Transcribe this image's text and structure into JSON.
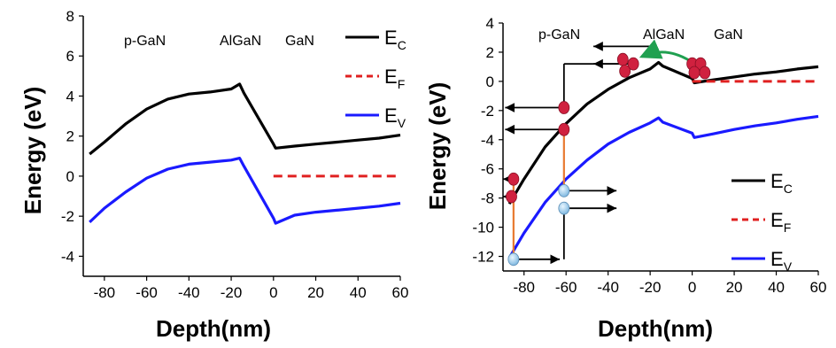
{
  "chart_data": [
    {
      "type": "line",
      "xlabel": "Depth(nm)",
      "ylabel": "Energy (eV)",
      "xlim": [
        -90,
        60
      ],
      "ylim": [
        -5,
        8
      ],
      "xticks": [
        -80,
        -60,
        -40,
        -20,
        0,
        20,
        40,
        60
      ],
      "yticks": [
        8,
        6,
        4,
        2,
        0,
        -2,
        -4
      ],
      "region_labels": [
        "p-GaN",
        "AlGaN",
        "GaN"
      ],
      "legend": {
        "position": "top-right",
        "entries": [
          {
            "main": "E",
            "sub": "C",
            "color": "#000000",
            "style": "solid"
          },
          {
            "main": "E",
            "sub": "F",
            "color": "#e02020",
            "style": "dashed"
          },
          {
            "main": "E",
            "sub": "V",
            "color": "#1a1aff",
            "style": "solid"
          }
        ]
      },
      "series": [
        {
          "name": "EC",
          "color": "#000000",
          "x": [
            -87,
            -80,
            -70,
            -60,
            -50,
            -40,
            -30,
            -20,
            -16,
            -14,
            0,
            1,
            10,
            20,
            30,
            40,
            50,
            60
          ],
          "y": [
            1.1,
            1.7,
            2.6,
            3.35,
            3.85,
            4.1,
            4.2,
            4.35,
            4.6,
            4.15,
            1.6,
            1.4,
            1.5,
            1.6,
            1.7,
            1.8,
            1.9,
            2.05
          ]
        },
        {
          "name": "EF",
          "color": "#e02020",
          "x": [
            0,
            60
          ],
          "y": [
            0,
            0
          ]
        },
        {
          "name": "EV",
          "color": "#1a1aff",
          "x": [
            -87,
            -80,
            -70,
            -60,
            -50,
            -40,
            -30,
            -20,
            -16,
            -14,
            0,
            1,
            10,
            20,
            30,
            40,
            50,
            60
          ],
          "y": [
            -2.3,
            -1.6,
            -0.8,
            -0.1,
            0.35,
            0.6,
            0.7,
            0.8,
            0.9,
            0.5,
            -2.1,
            -2.35,
            -1.95,
            -1.8,
            -1.7,
            -1.6,
            -1.5,
            -1.35
          ]
        }
      ]
    },
    {
      "type": "line",
      "xlabel": "Depth(nm)",
      "ylabel": "Energy (eV)",
      "xlim": [
        -90,
        60
      ],
      "ylim": [
        -13,
        4
      ],
      "xticks": [
        -80,
        -60,
        -40,
        -20,
        0,
        20,
        40,
        60
      ],
      "yticks": [
        4,
        2,
        0,
        -2,
        -4,
        -6,
        -8,
        -10,
        -12
      ],
      "region_labels": [
        "p-GaN",
        "AlGaN",
        "GaN"
      ],
      "legend": {
        "position": "bottom-right",
        "entries": [
          {
            "main": "E",
            "sub": "C",
            "color": "#000000",
            "style": "solid"
          },
          {
            "main": "E",
            "sub": "F",
            "color": "#e02020",
            "style": "dashed"
          },
          {
            "main": "E",
            "sub": "V",
            "color": "#1a1aff",
            "style": "solid"
          }
        ]
      },
      "series": [
        {
          "name": "EC",
          "color": "#000000",
          "x": [
            -87,
            -80,
            -70,
            -60,
            -50,
            -40,
            -30,
            -20,
            -16,
            -14,
            0,
            1,
            10,
            20,
            30,
            40,
            50,
            60
          ],
          "y": [
            -8.4,
            -6.7,
            -4.5,
            -2.9,
            -1.55,
            -0.55,
            0.25,
            0.85,
            1.3,
            1.05,
            0.2,
            -0.1,
            0.1,
            0.3,
            0.5,
            0.65,
            0.85,
            1.0
          ]
        },
        {
          "name": "EF",
          "color": "#e02020",
          "x": [
            0,
            60
          ],
          "y": [
            0,
            0
          ]
        },
        {
          "name": "EV",
          "color": "#1a1aff",
          "x": [
            -87,
            -80,
            -70,
            -60,
            -50,
            -40,
            -30,
            -20,
            -16,
            -14,
            0,
            1,
            10,
            20,
            30,
            40,
            50,
            60
          ],
          "y": [
            -12.1,
            -10.4,
            -8.3,
            -6.7,
            -5.4,
            -4.3,
            -3.5,
            -2.85,
            -2.5,
            -2.8,
            -3.55,
            -3.85,
            -3.6,
            -3.3,
            -3.05,
            -2.85,
            -2.6,
            -2.4
          ]
        }
      ],
      "electrons": [
        {
          "x": -85,
          "y": -6.7
        },
        {
          "x": -86,
          "y": -7.9
        },
        {
          "x": -61,
          "y": -1.8
        },
        {
          "x": -61,
          "y": -3.3
        },
        {
          "x": -33,
          "y": 1.5
        },
        {
          "x": -32,
          "y": 0.7
        },
        {
          "x": -28,
          "y": 1.2
        },
        {
          "x": 0,
          "y": 1.2
        },
        {
          "x": 4,
          "y": 1.2
        },
        {
          "x": 1,
          "y": 0.6
        },
        {
          "x": 6,
          "y": 0.6
        }
      ],
      "holes": [
        {
          "x": -85,
          "y": -12.2
        },
        {
          "x": -61,
          "y": -7.5
        },
        {
          "x": -61,
          "y": -8.7
        }
      ],
      "arrows": [
        {
          "from": [
            -85,
            -6.7
          ],
          "to": [
            -90,
            -6.7
          ],
          "color": "#000000"
        },
        {
          "from": [
            -85,
            -7.9
          ],
          "to": [
            -90,
            -7.9
          ],
          "color": "#000000"
        },
        {
          "from": [
            -61,
            -1.8
          ],
          "to": [
            -89,
            -1.8
          ],
          "color": "#000000"
        },
        {
          "from": [
            -61,
            -3.3
          ],
          "to": [
            -89,
            -3.3
          ],
          "color": "#000000"
        },
        {
          "from": [
            -61,
            -1.8
          ],
          "to": [
            -61,
            1.2
          ],
          "color": "#000000",
          "head": false
        },
        {
          "from": [
            -61,
            1.2
          ],
          "to": [
            -30,
            1.2
          ],
          "color": "#000000",
          "head": false
        },
        {
          "from": [
            -33,
            1.2
          ],
          "to": [
            -47,
            1.2
          ],
          "color": "#000000"
        },
        {
          "from": [
            -20,
            2.4
          ],
          "to": [
            -47,
            2.4
          ],
          "color": "#000000"
        },
        {
          "from": [
            -61,
            -7.5
          ],
          "to": [
            -36,
            -7.5
          ],
          "color": "#000000"
        },
        {
          "from": [
            -61,
            -8.7
          ],
          "to": [
            -36,
            -8.7
          ],
          "color": "#000000"
        },
        {
          "from": [
            -85,
            -12.2
          ],
          "to": [
            -63,
            -12.2
          ],
          "color": "#000000"
        },
        {
          "from": [
            -61,
            -12.2
          ],
          "to": [
            -61,
            -8.9
          ],
          "color": "#000000",
          "head": false
        },
        {
          "from": [
            -85,
            -6.9
          ],
          "to": [
            -85,
            -12.0
          ],
          "color": "#e87a30",
          "head": false
        },
        {
          "from": [
            -61,
            -3.5
          ],
          "to": [
            -61,
            -7.3
          ],
          "color": "#e87a30",
          "head": false
        },
        {
          "from": [
            -1,
            1.4
          ],
          "to": [
            -24,
            1.7
          ],
          "color": "#20a050",
          "curve": true
        }
      ]
    }
  ]
}
